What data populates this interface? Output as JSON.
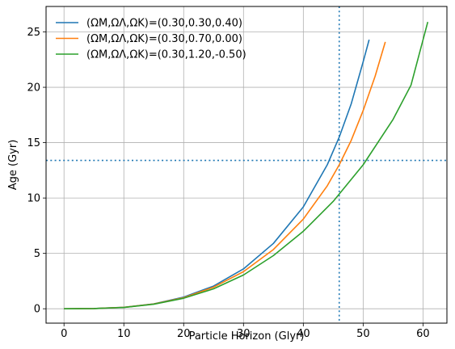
{
  "chart_data": {
    "type": "line",
    "title": "",
    "xlabel": "Particle Horizon (Glyr)",
    "ylabel": "Age (Gyr)",
    "xlim": [
      -3,
      64
    ],
    "ylim": [
      -1.3,
      27.3
    ],
    "xticks": [
      0,
      10,
      20,
      30,
      40,
      50,
      60
    ],
    "yticks": [
      0,
      5,
      10,
      15,
      20,
      25
    ],
    "grid": true,
    "legend_position": "top-left",
    "series": [
      {
        "name": "(ΩM,ΩΛ,ΩK)=(0.30,0.30,0.40)",
        "color": "#1f77b4",
        "points": [
          [
            0,
            0
          ],
          [
            5,
            0.02
          ],
          [
            10,
            0.13
          ],
          [
            15,
            0.44
          ],
          [
            20,
            1.05
          ],
          [
            25,
            2.05
          ],
          [
            30,
            3.6
          ],
          [
            35,
            5.9
          ],
          [
            40,
            9.2
          ],
          [
            44,
            13.0
          ],
          [
            46,
            15.5
          ],
          [
            48,
            18.5
          ],
          [
            50,
            22.3
          ],
          [
            51,
            24.3
          ]
        ]
      },
      {
        "name": "(ΩM,ΩΛ,ΩK)=(0.30,0.70,0.00)",
        "color": "#ff7f0e",
        "points": [
          [
            0,
            0
          ],
          [
            5,
            0.02
          ],
          [
            10,
            0.13
          ],
          [
            15,
            0.43
          ],
          [
            20,
            1.0
          ],
          [
            25,
            1.95
          ],
          [
            30,
            3.35
          ],
          [
            35,
            5.35
          ],
          [
            40,
            8.1
          ],
          [
            44,
            11.1
          ],
          [
            46,
            13.0
          ],
          [
            48,
            15.2
          ],
          [
            50,
            17.9
          ],
          [
            52,
            21.0
          ],
          [
            53.7,
            24.1
          ]
        ]
      },
      {
        "name": "(ΩM,ΩΛ,ΩK)=(0.30,1.20,-0.50)",
        "color": "#2ca02c",
        "points": [
          [
            0,
            0
          ],
          [
            5,
            0.02
          ],
          [
            10,
            0.12
          ],
          [
            15,
            0.41
          ],
          [
            20,
            0.95
          ],
          [
            25,
            1.8
          ],
          [
            30,
            3.05
          ],
          [
            35,
            4.8
          ],
          [
            40,
            7.0
          ],
          [
            45,
            9.7
          ],
          [
            50,
            13.0
          ],
          [
            55,
            17.1
          ],
          [
            58,
            20.2
          ],
          [
            60.8,
            25.9
          ]
        ]
      }
    ],
    "reference_lines": [
      {
        "orientation": "vertical",
        "value": 46,
        "color": "#1f77b4",
        "style": "dotted"
      },
      {
        "orientation": "horizontal",
        "value": 13.4,
        "color": "#1f77b4",
        "style": "dotted"
      }
    ]
  }
}
